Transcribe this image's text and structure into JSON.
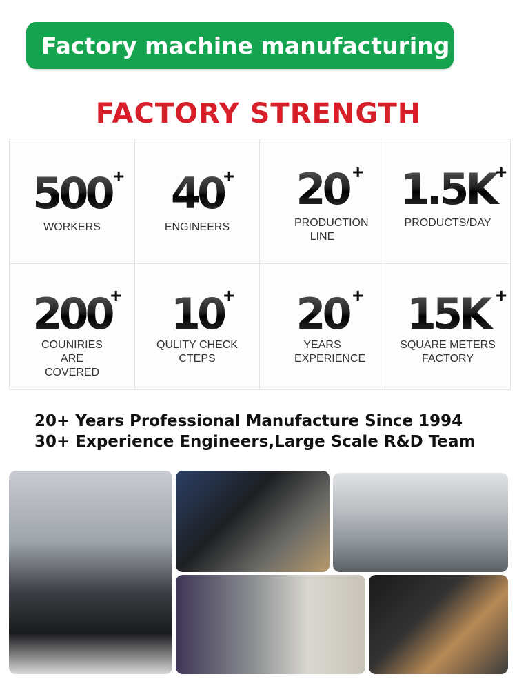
{
  "banner": "Factory machine manufacturing",
  "title": "FACTORY STRENGTH",
  "stats": [
    {
      "value": "500",
      "label": "WORKERS"
    },
    {
      "value": "40",
      "label": "ENGINEERS"
    },
    {
      "value": "20",
      "label": "PRODUCTION LINE"
    },
    {
      "value": "1.5K",
      "label": "PRODUCTS/DAY"
    },
    {
      "value": "200",
      "label": "COUNIRIES ARE COVERED"
    },
    {
      "value": "10",
      "label": "QULITY CHECK CTEPS"
    },
    {
      "value": "20",
      "label": "YEARS EXPERIENCE"
    },
    {
      "value": "15K",
      "label": "SQUARE METERS FACTORY"
    }
  ],
  "plus": "+",
  "taglines": [
    "20+ Years Professional Manufacture Since 1994",
    "30+ Experience Engineers,Large Scale R&D Team"
  ],
  "colors": {
    "banner": "#16a34f",
    "title": "#d71f2a"
  }
}
